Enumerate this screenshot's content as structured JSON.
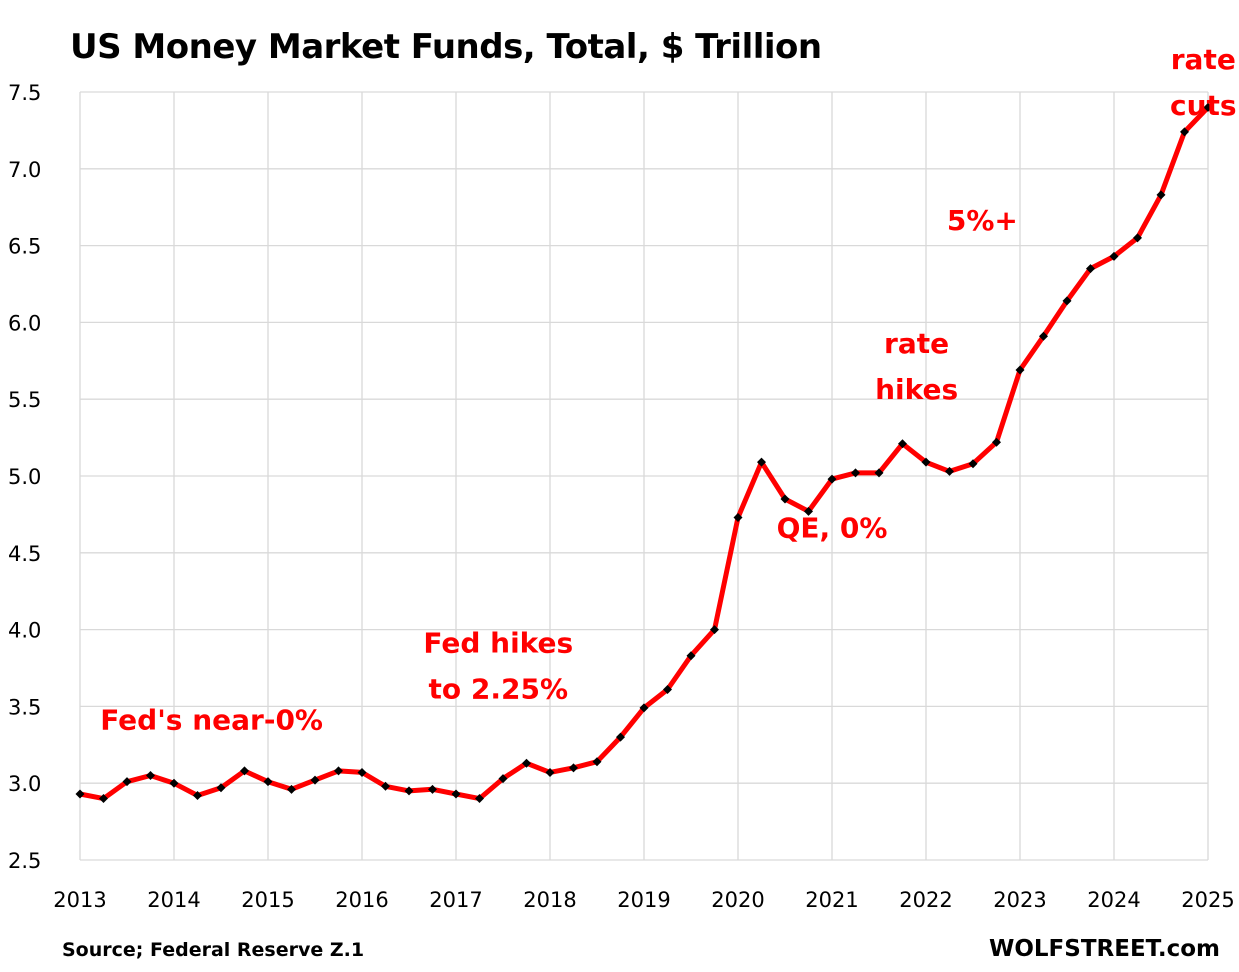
{
  "chart_data": {
    "type": "line",
    "title": "US Money Market Funds, Total, $ Trillion",
    "xlabel": "",
    "ylabel": "",
    "ylim": [
      2.5,
      7.5
    ],
    "xlim": [
      2013,
      2025
    ],
    "yticks": [
      "2.5",
      "3.0",
      "3.5",
      "4.0",
      "4.5",
      "5.0",
      "5.5",
      "6.0",
      "6.5",
      "7.0",
      "7.5"
    ],
    "xticks": [
      "2013",
      "2014",
      "2015",
      "2016",
      "2017",
      "2018",
      "2019",
      "2020",
      "2021",
      "2022",
      "2023",
      "2024",
      "2025"
    ],
    "grid": true,
    "legend": "none",
    "series": [
      {
        "name": "US Money Market Funds, Total",
        "color": "#ff0000",
        "marker_color": "#000000",
        "x": [
          2013.0,
          2013.25,
          2013.5,
          2013.75,
          2014.0,
          2014.25,
          2014.5,
          2014.75,
          2015.0,
          2015.25,
          2015.5,
          2015.75,
          2016.0,
          2016.25,
          2016.5,
          2016.75,
          2017.0,
          2017.25,
          2017.5,
          2017.75,
          2018.0,
          2018.25,
          2018.5,
          2018.75,
          2019.0,
          2019.25,
          2019.5,
          2019.75,
          2020.0,
          2020.25,
          2020.5,
          2020.75,
          2021.0,
          2021.25,
          2021.5,
          2021.75,
          2022.0,
          2022.25,
          2022.5,
          2022.75,
          2023.0,
          2023.25,
          2023.5,
          2023.75,
          2024.0,
          2024.25,
          2024.5,
          2024.75,
          2025.0
        ],
        "values": [
          2.93,
          2.9,
          3.01,
          3.05,
          3.0,
          2.92,
          2.97,
          3.08,
          3.01,
          2.96,
          3.02,
          3.08,
          3.07,
          2.98,
          2.95,
          2.96,
          2.93,
          2.9,
          3.03,
          3.13,
          3.07,
          3.1,
          3.14,
          3.3,
          3.49,
          3.61,
          3.83,
          4.0,
          4.73,
          5.09,
          4.85,
          4.77,
          4.98,
          5.02,
          5.02,
          5.21,
          5.09,
          5.03,
          5.08,
          5.22,
          5.69,
          5.91,
          6.14,
          6.35,
          6.43,
          6.55,
          6.83,
          7.24,
          7.4
        ]
      }
    ],
    "annotations": [
      {
        "lines": [
          "Fed's near-0%"
        ],
        "x": 2014.4,
        "y": 3.35
      },
      {
        "lines": [
          "Fed hikes",
          "to 2.25%"
        ],
        "x": 2017.45,
        "y": 3.85
      },
      {
        "lines": [
          "QE, 0%"
        ],
        "x": 2021.0,
        "y": 4.6
      },
      {
        "lines": [
          "rate",
          "hikes"
        ],
        "x": 2021.9,
        "y": 5.8
      },
      {
        "lines": [
          "5%+"
        ],
        "x": 2022.6,
        "y": 6.6
      },
      {
        "lines": [
          "rate",
          "cuts"
        ],
        "x": 2024.95,
        "y": 7.65
      }
    ],
    "annotation_color": "#ff0000"
  },
  "footer": {
    "source": "Source; Federal Reserve Z.1",
    "brand": "WOLFSTREET.com"
  }
}
